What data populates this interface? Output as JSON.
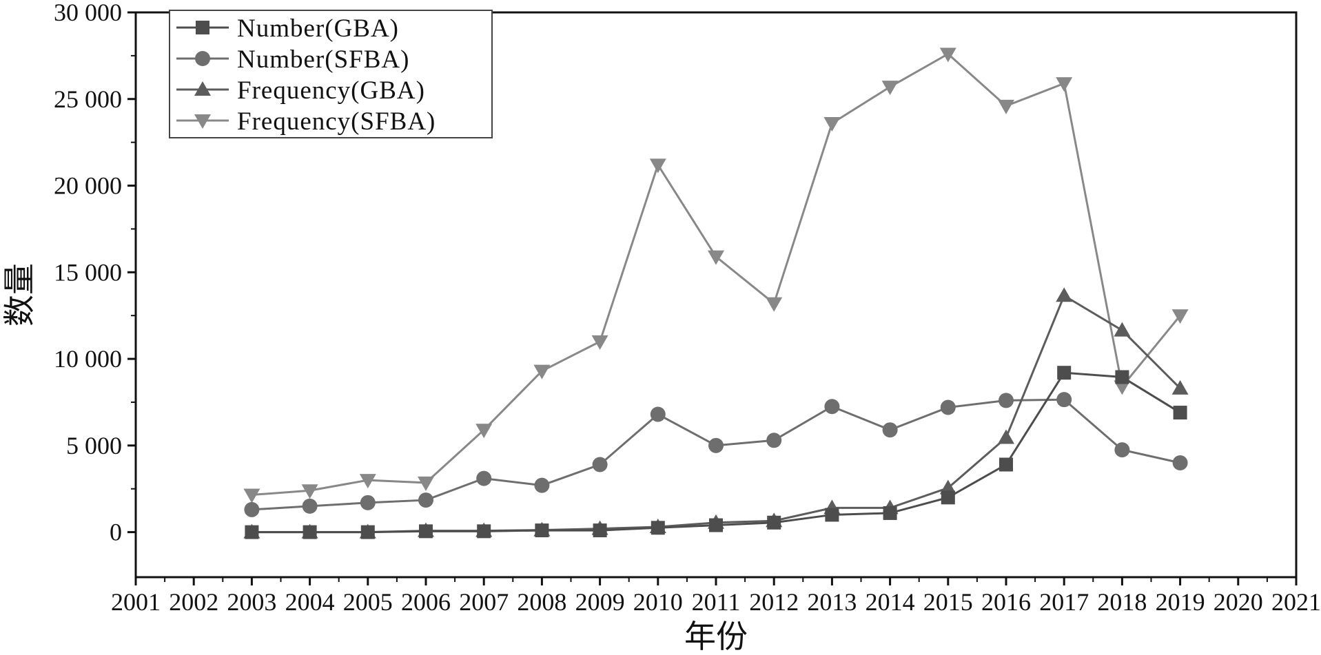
{
  "chart_data": {
    "type": "line",
    "title": "",
    "xlabel": "年份",
    "ylabel": "数量",
    "xlim": [
      2001,
      2021
    ],
    "ylim": [
      -2600,
      30000
    ],
    "x_ticks": [
      "2001",
      "2002",
      "2003",
      "2004",
      "2005",
      "2006",
      "2007",
      "2008",
      "2009",
      "2010",
      "2011",
      "2012",
      "2013",
      "2014",
      "2015",
      "2016",
      "2017",
      "2018",
      "2019",
      "2020",
      "2021"
    ],
    "y_ticks": [
      {
        "value": 0,
        "label": "0"
      },
      {
        "value": 5000,
        "label": "5 000"
      },
      {
        "value": 10000,
        "label": "10 000"
      },
      {
        "value": 15000,
        "label": "15 000"
      },
      {
        "value": 20000,
        "label": "20 000"
      },
      {
        "value": 25000,
        "label": "25 000"
      },
      {
        "value": 30000,
        "label": "30 000"
      }
    ],
    "grid": false,
    "legend_position": "top-left",
    "x": [
      2003,
      2004,
      2005,
      2006,
      2007,
      2008,
      2009,
      2010,
      2011,
      2012,
      2013,
      2014,
      2015,
      2016,
      2017,
      2018,
      2019
    ],
    "series": [
      {
        "name": "Number(GBA)",
        "marker": "square",
        "color": "#4d4d4d",
        "values": [
          0,
          0,
          0,
          50,
          50,
          100,
          100,
          250,
          400,
          550,
          1000,
          1100,
          2000,
          3900,
          9200,
          8950,
          6900
        ]
      },
      {
        "name": "Number(SFBA)",
        "marker": "circle",
        "color": "#6e6e6e",
        "values": [
          1300,
          1500,
          1700,
          1850,
          3100,
          2700,
          3900,
          6800,
          5000,
          5300,
          7250,
          5900,
          7200,
          7600,
          7650,
          4750,
          4000
        ]
      },
      {
        "name": "Frequency(GBA)",
        "marker": "triangle-up",
        "color": "#5c5c5c",
        "values": [
          0,
          0,
          0,
          80,
          80,
          120,
          200,
          300,
          550,
          650,
          1400,
          1400,
          2550,
          5450,
          13650,
          11650,
          8300
        ]
      },
      {
        "name": "Frequency(SFBA)",
        "marker": "triangle-down",
        "color": "#888888",
        "values": [
          2150,
          2400,
          3000,
          2850,
          5900,
          9300,
          11000,
          21200,
          15900,
          13200,
          23600,
          25700,
          27600,
          24600,
          25900,
          8400,
          12500
        ]
      }
    ]
  }
}
